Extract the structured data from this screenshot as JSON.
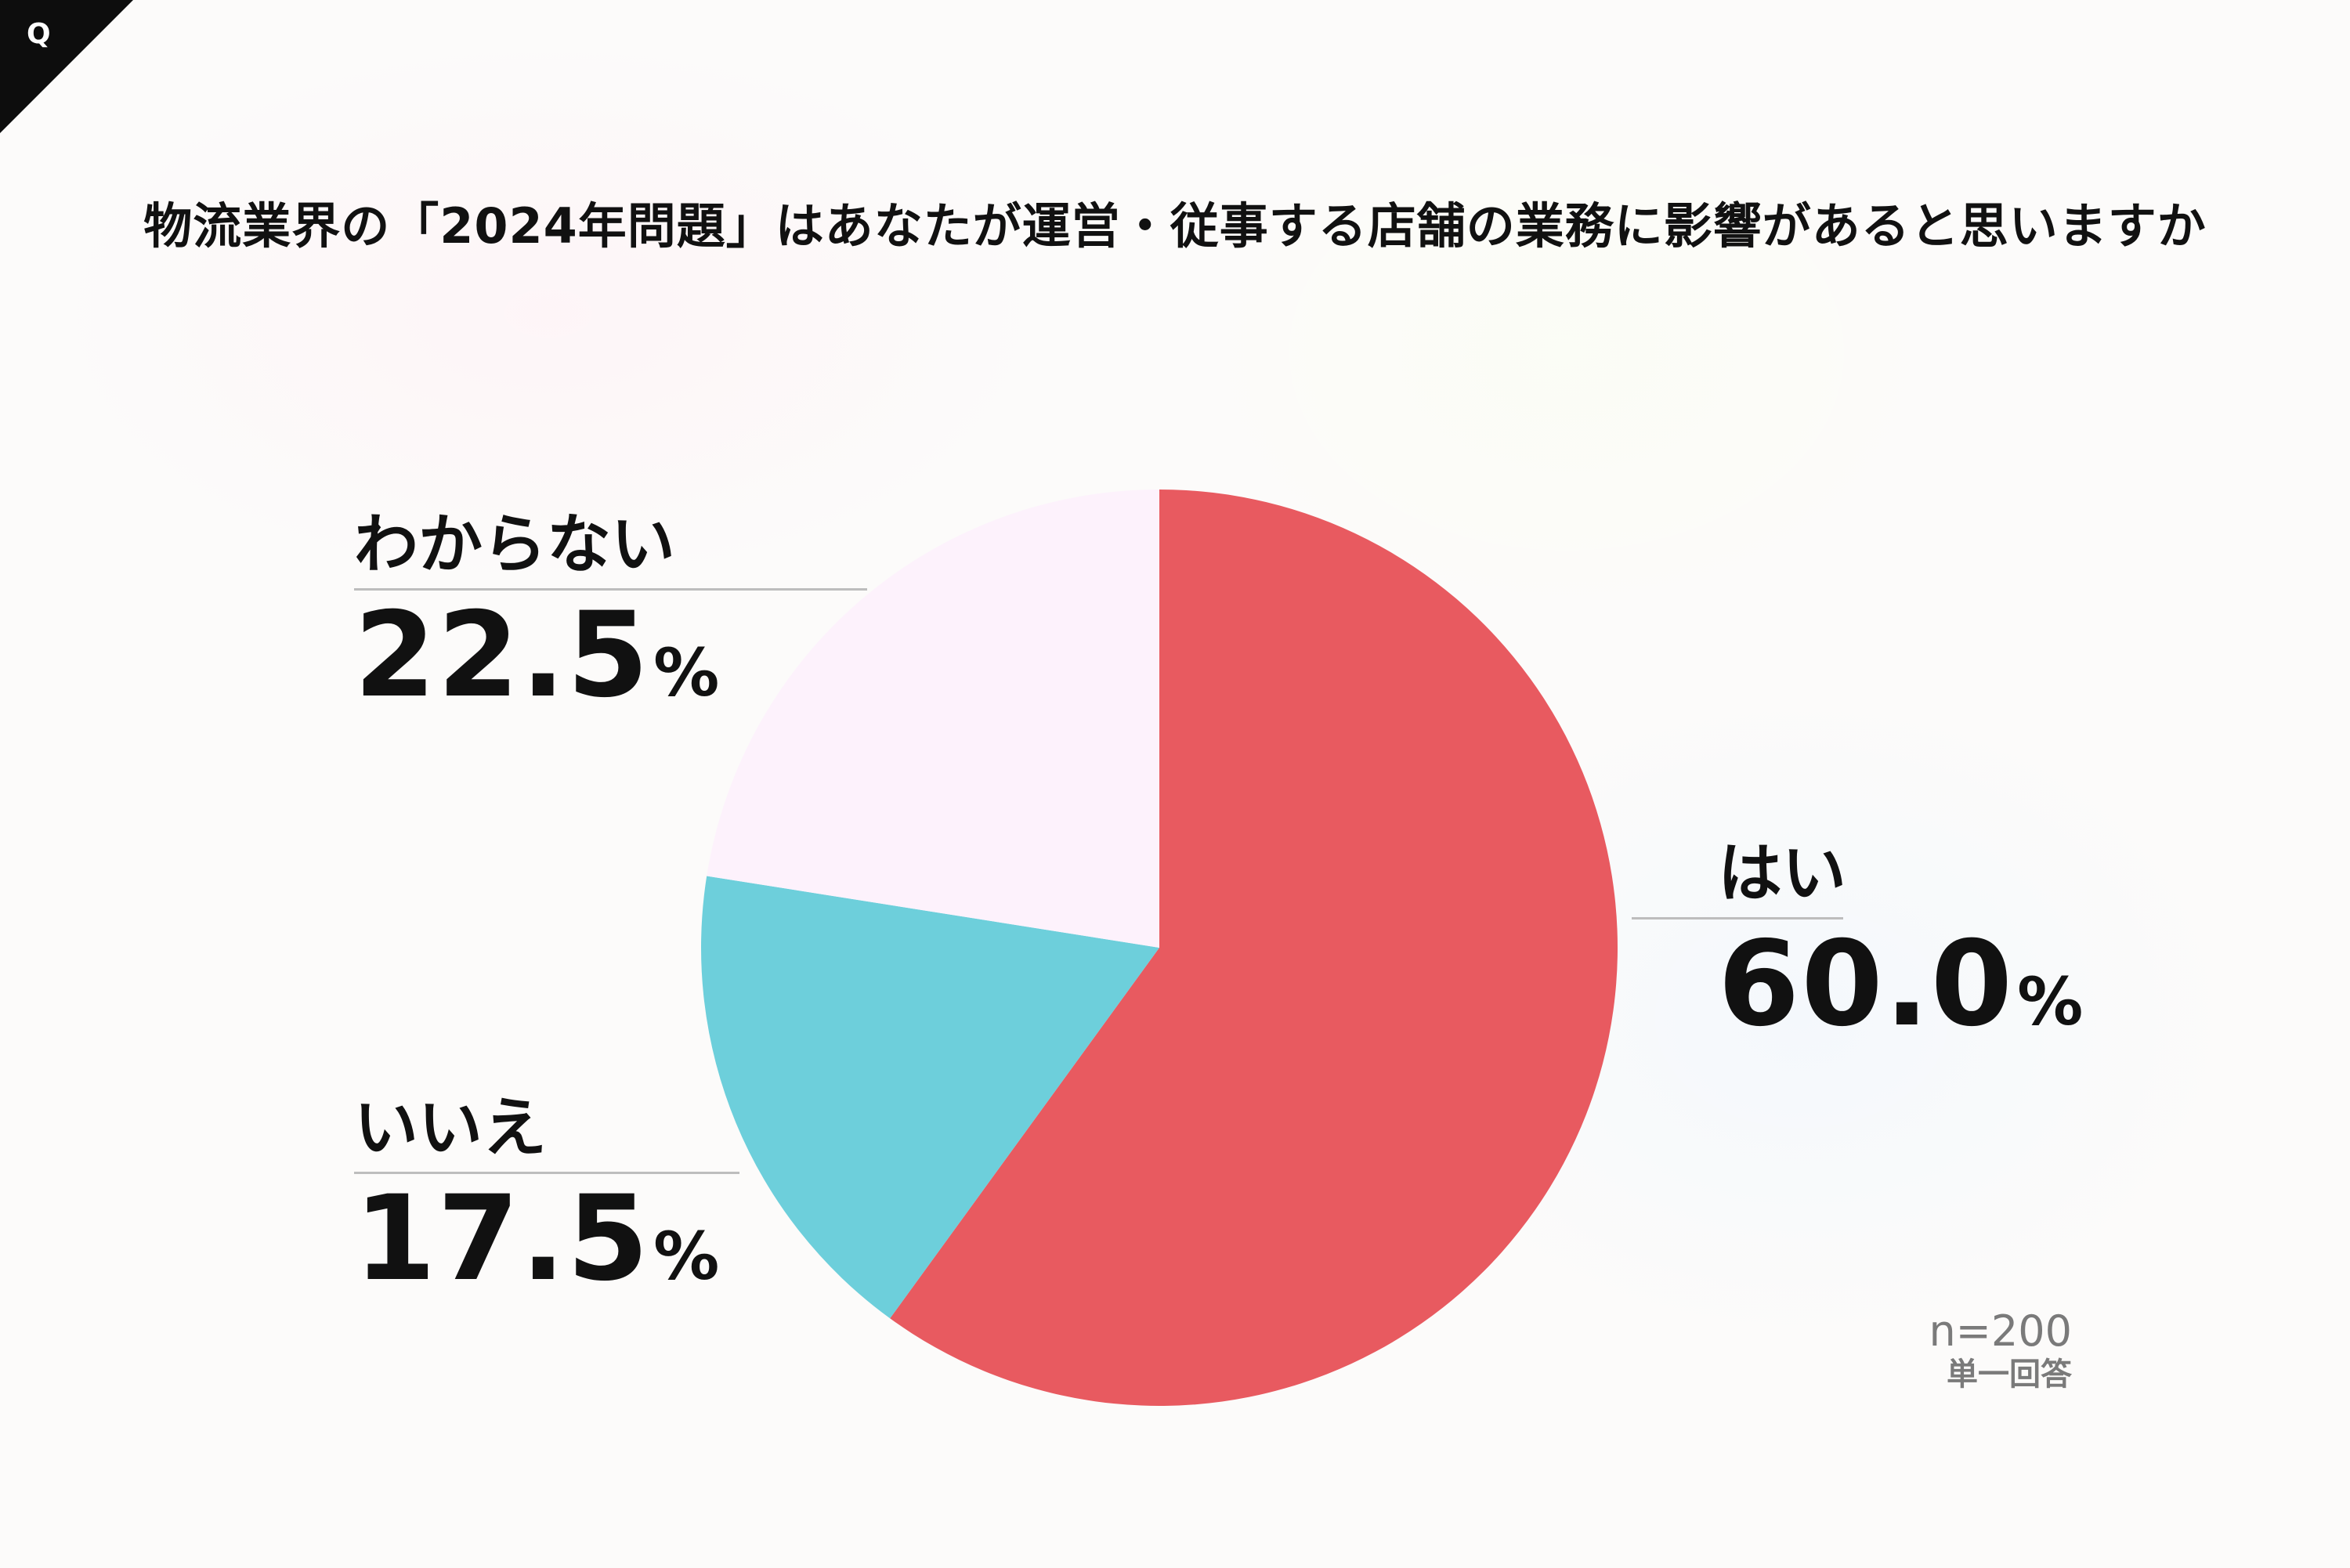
{
  "corner_badge": "Q",
  "title": "物流業界の「2024年問題」はあなたが運営・従事する店舗の業務に影響があると思いますか",
  "chart_data": {
    "type": "pie",
    "slices": [
      {
        "label": "はい",
        "value": 60.0,
        "display": "60.0",
        "color": "#e85a60"
      },
      {
        "label": "いいえ",
        "value": 17.5,
        "display": "17.5",
        "color": "#6dcfdb"
      },
      {
        "label": "わからない",
        "value": 22.5,
        "display": "22.5",
        "color": "#fdf2fc"
      }
    ],
    "unit": "%",
    "start_angle": "12 o'clock",
    "direction": "clockwise"
  },
  "note": {
    "sample": "n=200",
    "type": "単一回答"
  }
}
